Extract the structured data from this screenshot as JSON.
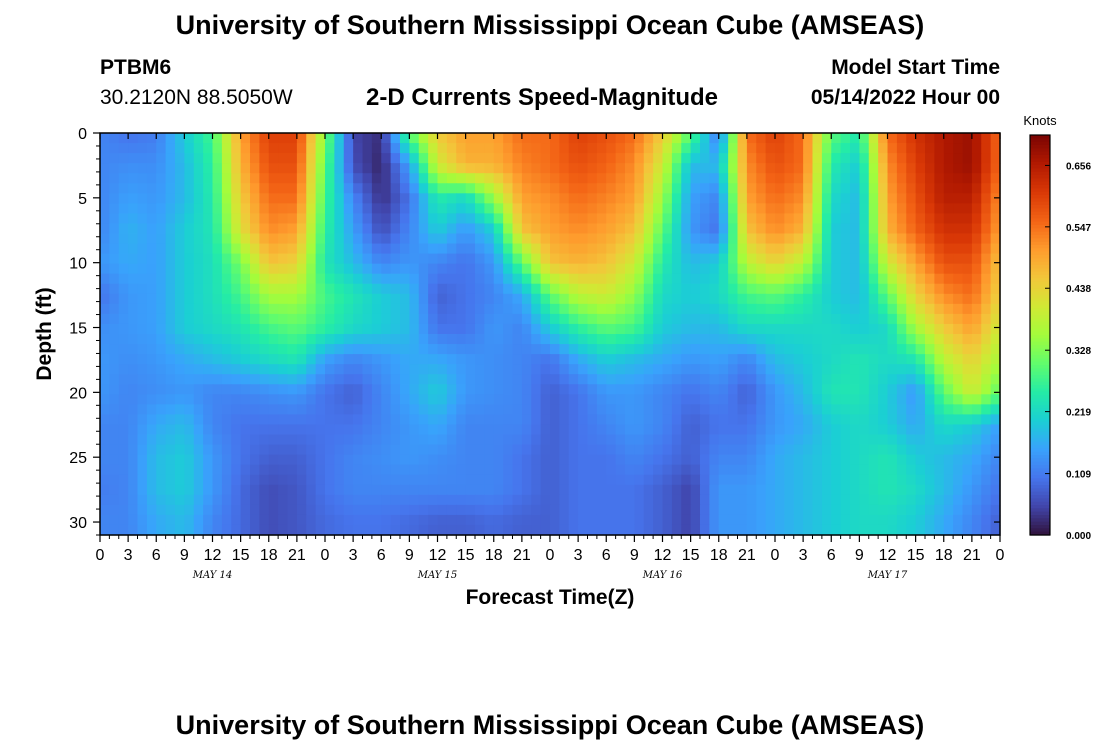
{
  "page": {
    "title": "University of Southern Mississippi Ocean Cube (AMSEAS)",
    "footer_title": "University of Southern Mississippi Ocean Cube (AMSEAS)",
    "station": "PTBM6",
    "coordinates": "30.2120N  88.5050W",
    "subtitle": "2-D Currents Speed-Magnitude",
    "model_start_label": "Model Start Time",
    "model_start_value": "05/14/2022 Hour 00"
  },
  "chart_data": {
    "type": "heatmap",
    "title": "2-D Currents Speed-Magnitude",
    "xlabel": "Forecast Time(Z)",
    "ylabel": "Depth (ft)",
    "x_hours": [
      0,
      96
    ],
    "x_tick_step_hours": 3,
    "x_tick_labels": [
      "0",
      "3",
      "6",
      "9",
      "12",
      "15",
      "18",
      "21",
      "0",
      "3",
      "6",
      "9",
      "12",
      "15",
      "18",
      "21",
      "0",
      "3",
      "6",
      "9",
      "12",
      "15",
      "18",
      "21",
      "0",
      "3",
      "6",
      "9",
      "12",
      "15",
      "18",
      "21",
      "0"
    ],
    "day_labels": [
      {
        "label": "MAY 14",
        "hour": 12
      },
      {
        "label": "MAY 15",
        "hour": 36
      },
      {
        "label": "MAY 16",
        "hour": 60
      },
      {
        "label": "MAY 17",
        "hour": 84
      }
    ],
    "ylim": [
      0,
      31
    ],
    "y_reversed": true,
    "y_ticks": [
      0,
      5,
      10,
      15,
      20,
      25,
      30
    ],
    "colorbar": {
      "label": "Knots",
      "ticks": [
        "0.656",
        "0.547",
        "0.438",
        "0.328",
        "0.219",
        "0.109",
        "0.000"
      ],
      "range": [
        0,
        0.71
      ],
      "colormap": [
        "#30123b",
        "#4145ab",
        "#4675ed",
        "#39a2fc",
        "#1bcfd4",
        "#24eca6",
        "#61fc6c",
        "#a4fc3b",
        "#d1e834",
        "#f3c63a",
        "#fe9b2d",
        "#f36315",
        "#d93806",
        "#b11901",
        "#7a0403"
      ]
    },
    "depth_rows": [
      0,
      2.5,
      5,
      7.5,
      10,
      12.5,
      15,
      17.5,
      20,
      22.5,
      25,
      27.5,
      30
    ],
    "time_cols_hours": [
      0,
      3,
      6,
      9,
      12,
      15,
      18,
      21,
      24,
      27,
      30,
      33,
      36,
      39,
      42,
      45,
      48,
      51,
      54,
      57,
      60,
      63,
      66,
      69,
      72,
      75,
      78,
      81,
      84,
      87,
      90,
      93,
      96
    ],
    "speed_knots": [
      [
        0.12,
        0.1,
        0.11,
        0.2,
        0.28,
        0.5,
        0.6,
        0.6,
        0.33,
        0.05,
        0.03,
        0.3,
        0.45,
        0.5,
        0.5,
        0.55,
        0.55,
        0.6,
        0.58,
        0.55,
        0.45,
        0.3,
        0.1,
        0.55,
        0.6,
        0.55,
        0.3,
        0.25,
        0.55,
        0.62,
        0.66,
        0.68,
        0.55
      ],
      [
        0.12,
        0.13,
        0.13,
        0.18,
        0.26,
        0.48,
        0.58,
        0.58,
        0.3,
        0.06,
        0.02,
        0.15,
        0.4,
        0.48,
        0.48,
        0.53,
        0.55,
        0.58,
        0.56,
        0.52,
        0.4,
        0.18,
        0.18,
        0.52,
        0.58,
        0.55,
        0.25,
        0.2,
        0.52,
        0.6,
        0.66,
        0.68,
        0.55
      ],
      [
        0.12,
        0.15,
        0.14,
        0.18,
        0.25,
        0.45,
        0.55,
        0.55,
        0.28,
        0.12,
        0.03,
        0.1,
        0.25,
        0.22,
        0.35,
        0.5,
        0.52,
        0.55,
        0.53,
        0.5,
        0.35,
        0.15,
        0.12,
        0.5,
        0.55,
        0.52,
        0.22,
        0.18,
        0.5,
        0.58,
        0.65,
        0.65,
        0.52
      ],
      [
        0.12,
        0.17,
        0.15,
        0.2,
        0.24,
        0.42,
        0.52,
        0.5,
        0.26,
        0.15,
        0.06,
        0.12,
        0.2,
        0.14,
        0.2,
        0.46,
        0.5,
        0.52,
        0.5,
        0.46,
        0.3,
        0.14,
        0.1,
        0.46,
        0.52,
        0.48,
        0.2,
        0.18,
        0.48,
        0.56,
        0.62,
        0.62,
        0.5
      ],
      [
        0.14,
        0.16,
        0.15,
        0.2,
        0.23,
        0.32,
        0.46,
        0.44,
        0.24,
        0.18,
        0.12,
        0.14,
        0.12,
        0.1,
        0.14,
        0.3,
        0.46,
        0.48,
        0.46,
        0.4,
        0.25,
        0.18,
        0.2,
        0.38,
        0.44,
        0.38,
        0.2,
        0.18,
        0.4,
        0.5,
        0.58,
        0.58,
        0.46
      ],
      [
        0.1,
        0.14,
        0.15,
        0.2,
        0.23,
        0.28,
        0.36,
        0.36,
        0.28,
        0.24,
        0.2,
        0.18,
        0.08,
        0.1,
        0.12,
        0.16,
        0.3,
        0.38,
        0.4,
        0.34,
        0.22,
        0.2,
        0.22,
        0.28,
        0.3,
        0.26,
        0.2,
        0.18,
        0.3,
        0.44,
        0.52,
        0.55,
        0.44
      ],
      [
        0.13,
        0.14,
        0.15,
        0.2,
        0.22,
        0.24,
        0.28,
        0.3,
        0.26,
        0.22,
        0.2,
        0.18,
        0.1,
        0.1,
        0.14,
        0.12,
        0.2,
        0.26,
        0.3,
        0.28,
        0.2,
        0.18,
        0.18,
        0.22,
        0.22,
        0.22,
        0.22,
        0.2,
        0.22,
        0.36,
        0.45,
        0.5,
        0.4
      ],
      [
        0.14,
        0.13,
        0.14,
        0.16,
        0.18,
        0.2,
        0.22,
        0.24,
        0.15,
        0.12,
        0.14,
        0.16,
        0.16,
        0.14,
        0.13,
        0.12,
        0.1,
        0.16,
        0.2,
        0.18,
        0.16,
        0.14,
        0.15,
        0.12,
        0.18,
        0.2,
        0.22,
        0.24,
        0.22,
        0.24,
        0.38,
        0.44,
        0.36
      ],
      [
        0.14,
        0.12,
        0.13,
        0.14,
        0.12,
        0.12,
        0.13,
        0.14,
        0.1,
        0.08,
        0.12,
        0.16,
        0.2,
        0.14,
        0.13,
        0.12,
        0.08,
        0.1,
        0.14,
        0.14,
        0.12,
        0.1,
        0.12,
        0.08,
        0.14,
        0.18,
        0.24,
        0.24,
        0.2,
        0.14,
        0.3,
        0.4,
        0.3
      ],
      [
        0.12,
        0.12,
        0.16,
        0.18,
        0.12,
        0.1,
        0.1,
        0.1,
        0.1,
        0.1,
        0.12,
        0.14,
        0.16,
        0.12,
        0.12,
        0.12,
        0.08,
        0.1,
        0.12,
        0.14,
        0.12,
        0.08,
        0.1,
        0.1,
        0.14,
        0.16,
        0.2,
        0.22,
        0.2,
        0.16,
        0.22,
        0.2,
        0.15
      ],
      [
        0.12,
        0.12,
        0.18,
        0.2,
        0.14,
        0.1,
        0.08,
        0.08,
        0.1,
        0.12,
        0.13,
        0.14,
        0.13,
        0.12,
        0.12,
        0.1,
        0.08,
        0.1,
        0.1,
        0.12,
        0.1,
        0.08,
        0.12,
        0.12,
        0.16,
        0.18,
        0.2,
        0.22,
        0.24,
        0.2,
        0.18,
        0.16,
        0.12
      ],
      [
        0.11,
        0.12,
        0.18,
        0.2,
        0.14,
        0.09,
        0.06,
        0.07,
        0.1,
        0.12,
        0.12,
        0.12,
        0.12,
        0.12,
        0.12,
        0.1,
        0.08,
        0.1,
        0.1,
        0.1,
        0.08,
        0.05,
        0.14,
        0.14,
        0.16,
        0.18,
        0.2,
        0.22,
        0.24,
        0.22,
        0.18,
        0.14,
        0.1
      ],
      [
        0.12,
        0.12,
        0.16,
        0.18,
        0.12,
        0.09,
        0.06,
        0.07,
        0.09,
        0.1,
        0.1,
        0.09,
        0.08,
        0.08,
        0.09,
        0.08,
        0.08,
        0.1,
        0.1,
        0.1,
        0.08,
        0.05,
        0.14,
        0.14,
        0.16,
        0.18,
        0.2,
        0.22,
        0.22,
        0.2,
        0.16,
        0.12,
        0.08
      ]
    ]
  }
}
